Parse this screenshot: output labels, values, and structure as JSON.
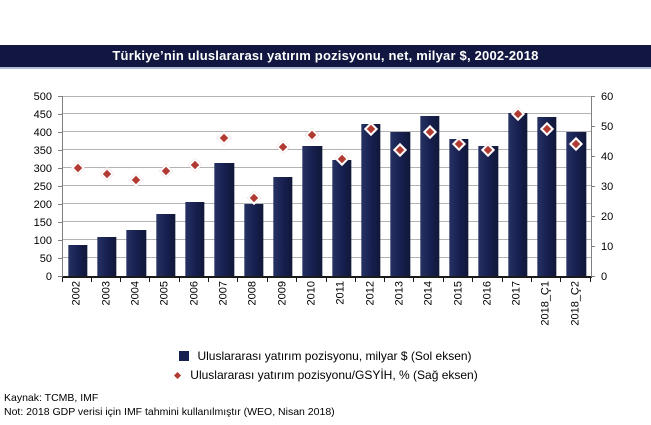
{
  "title": "Türkiye’nin uluslararası yatırım pozisyonu, net, milyar $, 2002-2018",
  "colors": {
    "banner": "#111740",
    "bar": "#172150",
    "marker": "#b13a33",
    "gridline": "#b3b3b3"
  },
  "legend": [
    {
      "marker": "navy-square-icon",
      "label": "Uluslararası yatırım pozisyonu, milyar $ (Sol eksen)"
    },
    {
      "marker": "red-diamond-icon",
      "label": "Uluslararası yatırım pozisyonu/GSYİH, % (Sağ eksen)"
    }
  ],
  "footer": {
    "source": "Kaynak: TCMB, IMF",
    "note": "Not: 2018 GDP verisi için IMF tahmini kullanılmıştır (WEO, Nisan 2018)"
  },
  "chart_data": {
    "type": "bar",
    "subtype": "bar-left-axis with diamond-scatter-right-axis",
    "title": "Türkiye’nin uluslararası yatırım pozisyonu, net, milyar $, 2002-2018",
    "categories": [
      "2002",
      "2003",
      "2004",
      "2005",
      "2006",
      "2007",
      "2008",
      "2009",
      "2010",
      "2011",
      "2012",
      "2013",
      "2014",
      "2015",
      "2016",
      "2017",
      "2018_Ç1",
      "2018_Ç2"
    ],
    "series": [
      {
        "name": "Uluslararası yatırım pozisyonu, milyar $ (Sol eksen)",
        "type": "bar",
        "axis": "left",
        "color": "#172150",
        "values": [
          85,
          107,
          129,
          172,
          206,
          314,
          200,
          276,
          361,
          322,
          423,
          401,
          444,
          380,
          360,
          452,
          443,
          400
        ]
      },
      {
        "name": "Uluslararası yatırım pozisyonu/GSYİH, % (Sağ eksen)",
        "type": "scatter",
        "marker": "diamond",
        "axis": "right",
        "color": "#b13a33",
        "values": [
          36,
          34,
          32,
          35,
          37,
          46,
          26,
          43,
          47,
          39,
          49,
          42,
          48,
          44,
          42,
          54,
          49,
          44
        ]
      }
    ],
    "left_axis": {
      "min": 0,
      "max": 500,
      "step": 50,
      "ticks": [
        0,
        50,
        100,
        150,
        200,
        250,
        300,
        350,
        400,
        450,
        500
      ]
    },
    "right_axis": {
      "min": 0,
      "max": 60,
      "step": 10,
      "ticks": [
        0,
        10,
        20,
        30,
        40,
        50,
        60
      ]
    },
    "grid": true,
    "legend_position": "bottom",
    "x_label_rotation": -90
  }
}
